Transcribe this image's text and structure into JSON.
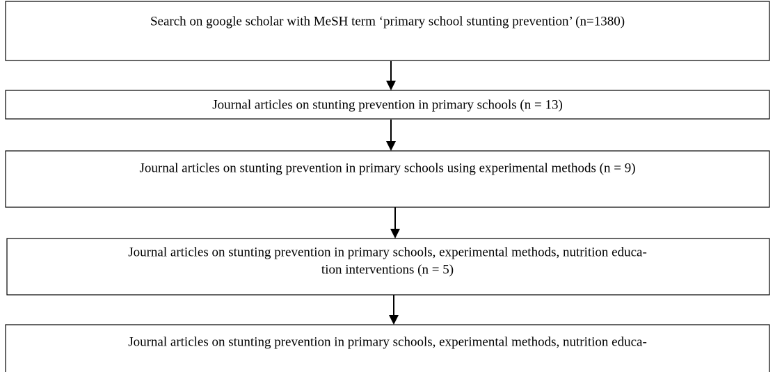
{
  "nodes": [
    {
      "lines": [
        "Search on google scholar with MeSH term ‘primary school stunting prevention’ (n=1380)"
      ]
    },
    {
      "lines": [
        "Journal articles on stunting prevention in primary schools (n = 13)"
      ]
    },
    {
      "lines": [
        "Journal articles on stunting prevention in primary schools using experimental methods (n = 9)"
      ]
    },
    {
      "lines": [
        "Journal articles on stunting prevention in primary schools, experimental methods, nutrition educa-",
        "tion interventions (n = 5)"
      ]
    },
    {
      "lines": [
        "Journal articles on stunting prevention in primary schools, experimental methods, nutrition educa-"
      ]
    }
  ]
}
